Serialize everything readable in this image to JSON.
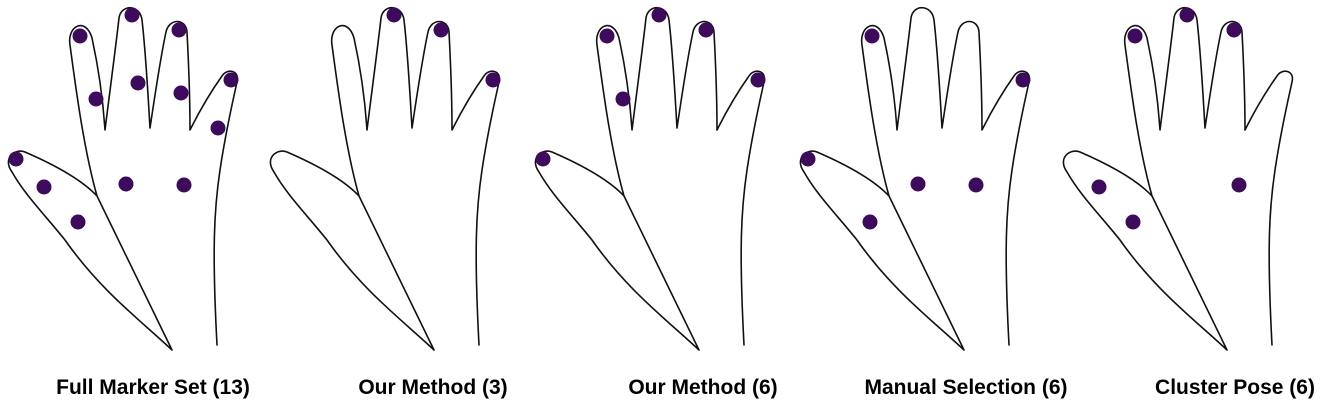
{
  "colors": {
    "outline": "#111111",
    "marker": "#3d0a5c",
    "background": "#ffffff"
  },
  "panels": [
    {
      "caption": "Full Marker Set (13)",
      "markers": [
        "index-tip",
        "middle-tip",
        "ring-tip",
        "pinky-tip",
        "index-mid",
        "middle-mid",
        "ring-mid",
        "pinky-mid",
        "thumb-tip",
        "thumb-mid",
        "palm-left",
        "palm-right",
        "wrist-thumb"
      ]
    },
    {
      "caption": "Our Method (3)",
      "markers": [
        "middle-tip",
        "ring-tip",
        "pinky-tip"
      ]
    },
    {
      "caption": "Our Method (6)",
      "markers": [
        "index-tip",
        "middle-tip",
        "ring-tip",
        "pinky-tip",
        "index-mid",
        "thumb-tip"
      ]
    },
    {
      "caption": "Manual Selection (6)",
      "markers": [
        "index-tip",
        "pinky-tip",
        "thumb-tip",
        "palm-left",
        "palm-right",
        "wrist-thumb"
      ]
    },
    {
      "caption": "Cluster Pose (6)",
      "markers": [
        "index-tip",
        "middle-tip",
        "ring-tip",
        "thumb-mid",
        "palm-right",
        "wrist-thumb"
      ]
    }
  ]
}
